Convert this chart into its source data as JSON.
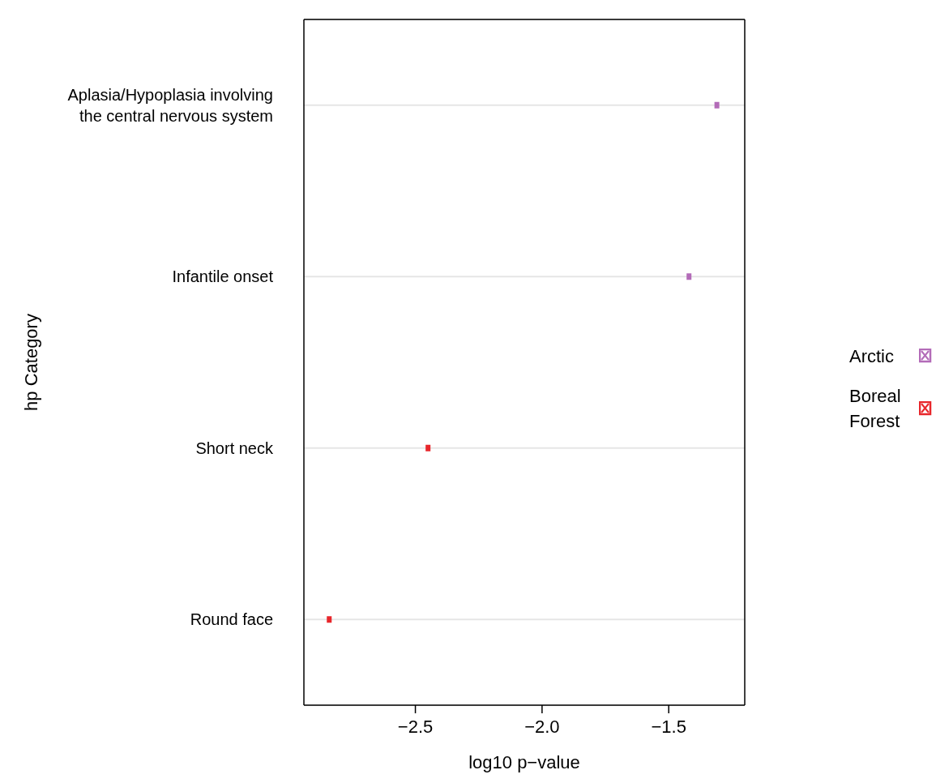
{
  "chart_data": {
    "type": "scatter",
    "orientation": "horizontal",
    "xlabel": "log10 p−value",
    "ylabel": "hp Category",
    "categories": [
      "Aplasia/Hypoplasia involving the central nervous system",
      "Infantile onset",
      "Short neck",
      "Round face"
    ],
    "series": [
      {
        "name": "Arctic",
        "color": "#b36bb8",
        "values": [
          -1.31,
          -1.42,
          null,
          null
        ]
      },
      {
        "name": "Boreal Forest",
        "color": "#e8262b",
        "values": [
          null,
          null,
          -2.45,
          -2.84
        ]
      }
    ],
    "xlim": [
      -2.94,
      -1.2
    ],
    "xticks": [
      {
        "value": -2.5,
        "label": "−2.5"
      },
      {
        "value": -2.0,
        "label": "−2.0"
      },
      {
        "value": -1.5,
        "label": "−1.5"
      }
    ],
    "grid": "y",
    "legend": "right",
    "marker": "square"
  }
}
